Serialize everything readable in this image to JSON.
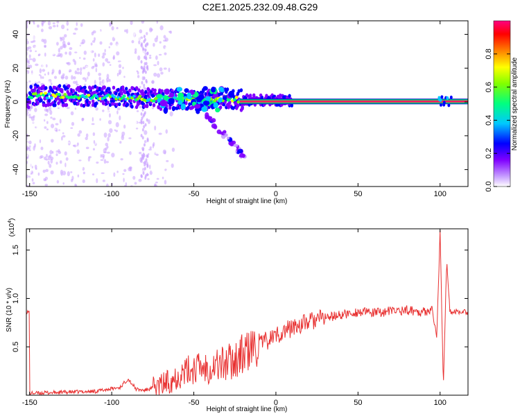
{
  "title": "C2E1.2025.232.09.48.G29",
  "chart_data": [
    {
      "type": "heatmap",
      "xlabel": "Height of straight line (km)",
      "ylabel": "Frequency (Hz)",
      "xlim": [
        -152,
        117
      ],
      "ylim": [
        -50,
        48
      ],
      "x_ticks": [
        -150,
        -100,
        -50,
        0,
        50,
        100
      ],
      "y_ticks": [
        -40,
        -20,
        0,
        20,
        40
      ],
      "colorbar": {
        "label": "Normalized spectral amplitude",
        "range": [
          0,
          1
        ],
        "ticks": [
          0.0,
          0.2,
          0.4,
          0.6,
          0.8
        ],
        "colors": [
          "#ffffff",
          "#c8a0ff",
          "#8000ff",
          "#0000ff",
          "#00c8ff",
          "#00ff80",
          "#80ff00",
          "#ffff00",
          "#ff8000",
          "#ff0000",
          "#ff0080"
        ]
      },
      "ridge": {
        "description_points_x": [
          -150,
          -125,
          -100,
          -75,
          -50,
          -30,
          -20,
          -10,
          0,
          50,
          100,
          117
        ],
        "description_points_freq": [
          4,
          3.5,
          3,
          2,
          1,
          2,
          1,
          1,
          1,
          0,
          0,
          0
        ]
      }
    },
    {
      "type": "line",
      "xlabel": "Height of straight line (km)",
      "ylabel": "SNR (10 * v/v)",
      "y_scale_label": "(x10",
      "y_scale_exp": "4",
      "xlim": [
        -152,
        117
      ],
      "ylim": [
        0,
        1.72
      ],
      "x_ticks": [
        -150,
        -100,
        -50,
        0,
        50,
        100
      ],
      "y_ticks": [
        0.5,
        1.0,
        1.5
      ],
      "y_tick_labels": [
        "0.5",
        "1.0",
        "1.5"
      ],
      "series": [
        {
          "color": "#e83030",
          "x": [
            -150,
            -130,
            -110,
            -95,
            -90,
            -85,
            -80,
            -70,
            -60,
            -50,
            -40,
            -30,
            -20,
            -10,
            0,
            10,
            20,
            30,
            40,
            50,
            60,
            70,
            80,
            90,
            95,
            98,
            100,
            102,
            104,
            106,
            110,
            117
          ],
          "values": [
            0.02,
            0.03,
            0.04,
            0.08,
            0.17,
            0.06,
            0.05,
            0.1,
            0.2,
            0.28,
            0.3,
            0.33,
            0.42,
            0.52,
            0.62,
            0.7,
            0.76,
            0.8,
            0.83,
            0.86,
            0.85,
            0.87,
            0.88,
            0.86,
            0.9,
            0.6,
            1.7,
            0.1,
            1.38,
            0.86,
            0.87,
            0.86
          ]
        }
      ]
    }
  ]
}
